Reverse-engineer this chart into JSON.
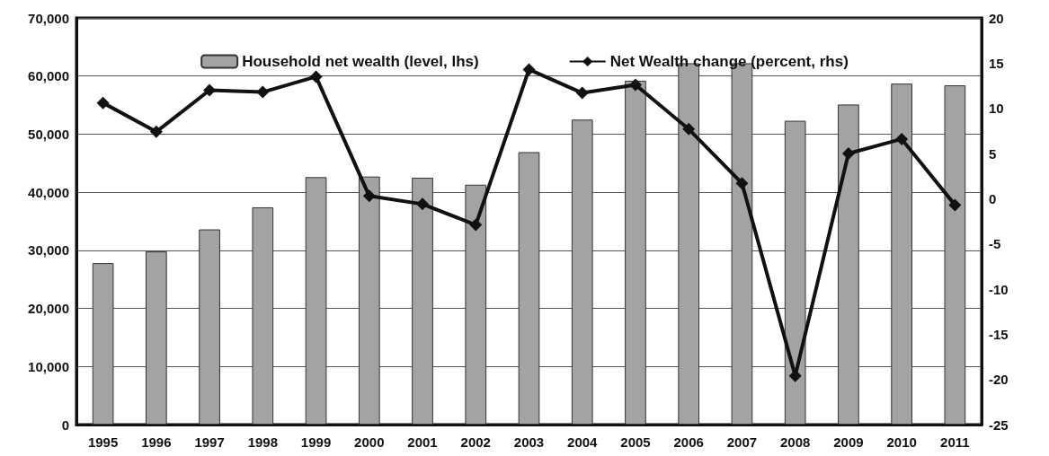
{
  "chart_data": {
    "type": "bar",
    "categories": [
      "1995",
      "1996",
      "1997",
      "1998",
      "1999",
      "2000",
      "2001",
      "2002",
      "2003",
      "2004",
      "2005",
      "2006",
      "2007",
      "2008",
      "2009",
      "2010",
      "2011"
    ],
    "series": [
      {
        "name": "Household net wealth (level, lhs)",
        "color": "#a3a3a3",
        "values": [
          27800,
          29800,
          33600,
          37400,
          42600,
          42700,
          42500,
          41300,
          46900,
          52500,
          59200,
          62200,
          62200,
          52300,
          55100,
          58700,
          58400
        ]
      },
      {
        "name": "Net Wealth change (percent, rhs)",
        "type": "line",
        "axis": "y2",
        "color": "#111111",
        "values": [
          10.6,
          7.4,
          12.0,
          11.8,
          13.5,
          0.3,
          -0.6,
          -2.9,
          14.3,
          11.7,
          12.6,
          7.7,
          1.7,
          -19.6,
          5.0,
          6.6,
          -0.7
        ]
      }
    ],
    "ylim": [
      0,
      70000
    ],
    "yticks": [
      {
        "value": 0,
        "label": "0"
      },
      {
        "value": 10000,
        "label": "10,000"
      },
      {
        "value": 20000,
        "label": "20,000"
      },
      {
        "value": 30000,
        "label": "30,000"
      },
      {
        "value": 40000,
        "label": "40,000"
      },
      {
        "value": 50000,
        "label": "50,000"
      },
      {
        "value": 60000,
        "label": "60,000"
      },
      {
        "value": 70000,
        "label": "70,000"
      }
    ],
    "y2lim": [
      -25,
      20
    ],
    "y2ticks": [
      -25,
      -20,
      -15,
      -10,
      -5,
      0,
      5,
      10,
      15,
      20
    ],
    "grid": "y",
    "legend": "top",
    "marker": "diamond",
    "line_style": "solid"
  }
}
